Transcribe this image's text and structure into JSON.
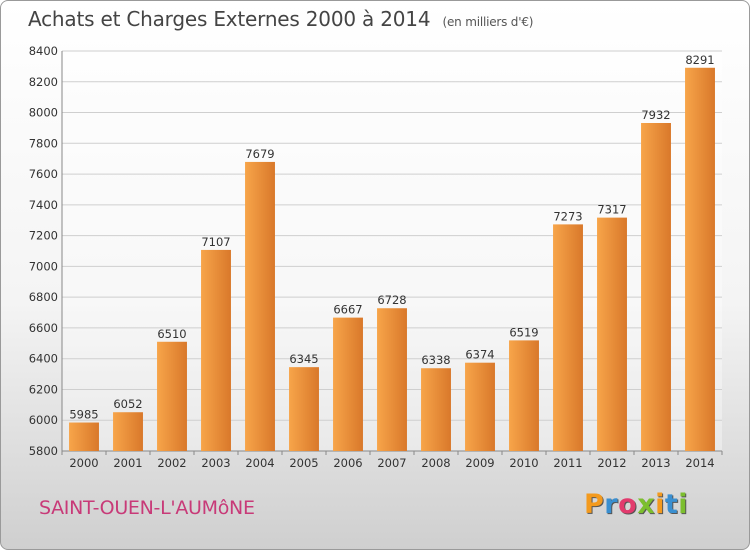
{
  "header": {
    "title": "Achats et Charges Externes 2000 à 2014",
    "unit": "(en milliers d'€)"
  },
  "footer": {
    "location": "SAINT-OUEN-L'AUMôNE",
    "logo": [
      "P",
      "r",
      "o",
      "x",
      "i",
      "t",
      "i"
    ],
    "logo_colors": [
      "#f39a1e",
      "#3a8fd0",
      "#e23a6d",
      "#7cbf2e",
      "#f39a1e",
      "#3a8fd0",
      "#7cbf2e"
    ]
  },
  "colors": {
    "bar_light": "#f7a54a",
    "bar_dark": "#d9782a",
    "grid": "#cfcfcf",
    "axis": "#888888"
  },
  "chart_data": {
    "type": "bar",
    "categories": [
      "2000",
      "2001",
      "2002",
      "2003",
      "2004",
      "2005",
      "2006",
      "2007",
      "2008",
      "2009",
      "2010",
      "2011",
      "2012",
      "2013",
      "2014"
    ],
    "values": [
      5985,
      6052,
      6510,
      7107,
      7679,
      6345,
      6667,
      6728,
      6338,
      6374,
      6519,
      7273,
      7317,
      7932,
      8291
    ],
    "ylim": [
      5800,
      8400
    ],
    "yticks": [
      5800,
      6000,
      6200,
      6400,
      6600,
      6800,
      7000,
      7200,
      7400,
      7600,
      7800,
      8000,
      8200,
      8400
    ],
    "grid": true,
    "data_labels": true
  }
}
